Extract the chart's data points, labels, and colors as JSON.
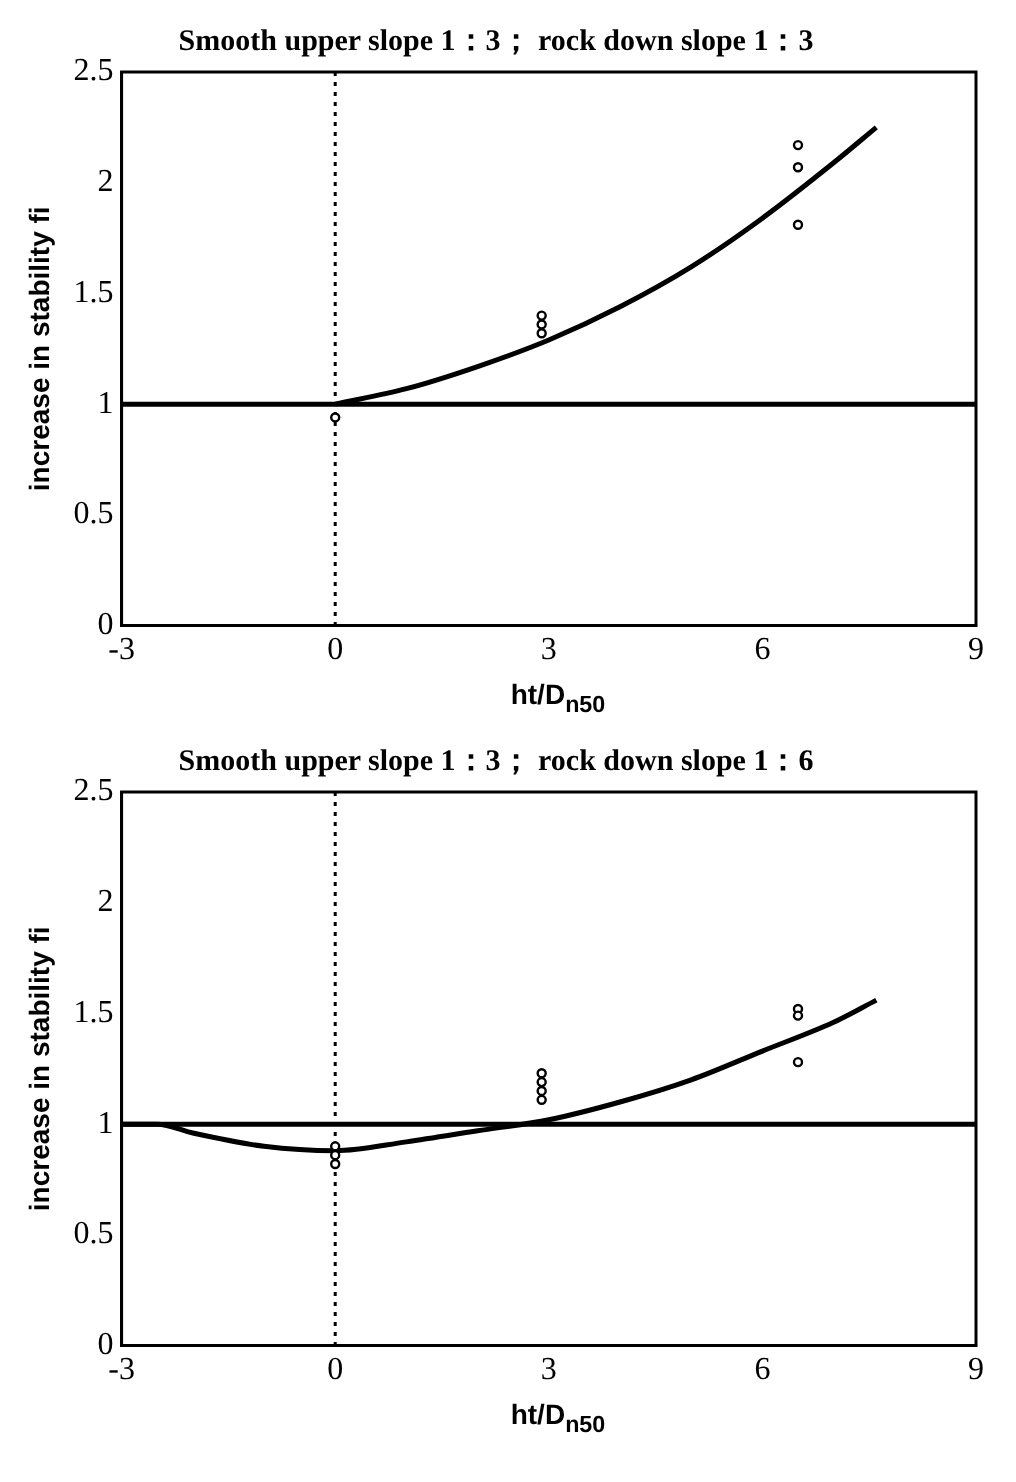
{
  "chart_data": [
    {
      "type": "scatter",
      "title": "Smooth upper slope 1：3； rock down slope 1：3",
      "xlabel": "ht/D$_{n50}$",
      "ylabel": "increase in stability fi",
      "xlim": [
        -3,
        9
      ],
      "xticks": [
        -3,
        0,
        3,
        6,
        9
      ],
      "ylim": [
        0,
        2.5
      ],
      "yticks": [
        0,
        0.5,
        1,
        1.5,
        2,
        2.5
      ],
      "series": [
        {
          "type": "scatter",
          "color": "#000000",
          "marker": "circle",
          "x": [
            0,
            2.9,
            2.9,
            2.9,
            6.5,
            6.5,
            6.5
          ],
          "values": [
            0.94,
            1.4,
            1.36,
            1.32,
            2.17,
            2.07,
            1.81
          ]
        },
        {
          "type": "line",
          "color": "#000000",
          "marker": "none",
          "x": [
            0,
            1,
            2,
            3,
            4,
            5,
            6,
            7,
            7.6
          ],
          "values": [
            1,
            1.07,
            1.17,
            1.29,
            1.44,
            1.62,
            1.84,
            2.09,
            2.25
          ]
        }
      ],
      "ref_lines": [
        {
          "axis": "y",
          "value": 1,
          "color": "#000000",
          "line_style": "solid"
        },
        {
          "axis": "x",
          "value": 0,
          "color": "#000000",
          "line_style": "dotted"
        }
      ]
    },
    {
      "type": "scatter",
      "title": "Smooth upper slope 1：3； rock down slope 1：6",
      "xlabel": "ht/D$_{n50}$",
      "ylabel": "increase in stability fi",
      "xlim": [
        -3,
        9
      ],
      "xticks": [
        -3,
        0,
        3,
        6,
        9
      ],
      "ylim": [
        0,
        2.5
      ],
      "yticks": [
        0,
        0.5,
        1,
        1.5,
        2,
        2.5
      ],
      "series": [
        {
          "type": "scatter",
          "color": "#000000",
          "marker": "circle",
          "x": [
            0,
            0,
            0,
            2.9,
            2.9,
            2.9,
            2.9,
            6.5,
            6.5,
            6.5
          ],
          "values": [
            0.9,
            0.86,
            0.82,
            1.23,
            1.19,
            1.15,
            1.11,
            1.52,
            1.49,
            1.28
          ]
        },
        {
          "type": "line",
          "color": "#000000",
          "marker": "none",
          "x": [
            -3,
            -2.5,
            -2,
            -1,
            0,
            1,
            2,
            3,
            4,
            5,
            6,
            7,
            7.6
          ],
          "values": [
            1,
            1,
            0.96,
            0.9,
            0.88,
            0.92,
            0.97,
            1.02,
            1.1,
            1.2,
            1.33,
            1.46,
            1.56
          ]
        }
      ],
      "ref_lines": [
        {
          "axis": "y",
          "value": 1,
          "color": "#000000",
          "line_style": "solid"
        },
        {
          "axis": "x",
          "value": 0,
          "color": "#000000",
          "line_style": "dotted"
        }
      ]
    }
  ]
}
